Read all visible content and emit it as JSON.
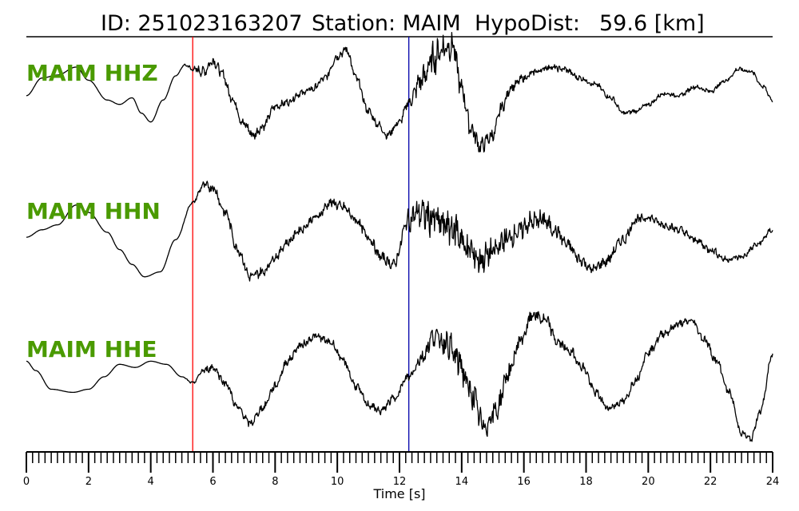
{
  "title": {
    "id_label": "ID: 251023163207",
    "station_label": "Station: MAIM",
    "dist_label": "HypoDist:",
    "dist_value": "59.6 [km]"
  },
  "chart_data": {
    "type": "line",
    "xlabel": "Time [s]",
    "xlim": [
      0,
      24
    ],
    "xticks": [
      "0",
      "2",
      "4",
      "6",
      "8",
      "10",
      "12",
      "14",
      "16",
      "18",
      "20",
      "22",
      "24"
    ],
    "minor_tick_step": 0.2,
    "markers": [
      {
        "time": 5.35,
        "color": "#ff0000"
      },
      {
        "time": 12.3,
        "color": "#0000aa"
      }
    ],
    "label_color": "#4a9a00",
    "trace_color": "#000000",
    "series": [
      {
        "name": "MAIM HHZ",
        "x": [
          0,
          0.5,
          1,
          1.6,
          2,
          2.6,
          3,
          3.4,
          3.7,
          4,
          4.4,
          4.8,
          5.1,
          5.35,
          5.7,
          6,
          6.3,
          6.6,
          7,
          7.3,
          7.6,
          8,
          8.4,
          8.8,
          9.2,
          9.6,
          10,
          10.3,
          10.6,
          11,
          11.3,
          11.6,
          12,
          12.3,
          12.7,
          13.1,
          13.4,
          13.7,
          14,
          14.3,
          14.6,
          15,
          15.3,
          15.6,
          16,
          16.4,
          16.8,
          17.3,
          17.8,
          18.3,
          18.8,
          19.2,
          19.6,
          20,
          20.5,
          21,
          21.5,
          22,
          22.5,
          22.9,
          23.3,
          23.7,
          24
        ],
        "y": [
          0.15,
          0.55,
          0.62,
          0.8,
          0.5,
          0.05,
          -0.05,
          0.1,
          -0.25,
          -0.45,
          0.05,
          0.6,
          0.85,
          0.75,
          0.7,
          0.95,
          0.65,
          0.1,
          -0.5,
          -0.75,
          -0.55,
          -0.1,
          0.0,
          0.2,
          0.3,
          0.55,
          1.05,
          1.2,
          0.55,
          -0.2,
          -0.5,
          -0.75,
          -0.45,
          0.0,
          0.5,
          1.0,
          1.25,
          1.3,
          0.3,
          -0.6,
          -1.0,
          -0.75,
          -0.1,
          0.35,
          0.55,
          0.7,
          0.8,
          0.75,
          0.55,
          0.4,
          0.1,
          -0.25,
          -0.2,
          -0.05,
          0.2,
          0.15,
          0.35,
          0.25,
          0.5,
          0.75,
          0.7,
          0.35,
          0.05
        ],
        "noise": [
          0,
          0,
          0,
          0,
          0,
          0,
          0,
          0,
          0,
          0,
          0,
          0,
          0.02,
          0.08,
          0.12,
          0.12,
          0.1,
          0.1,
          0.12,
          0.12,
          0.1,
          0.08,
          0.08,
          0.08,
          0.08,
          0.08,
          0.1,
          0.1,
          0.1,
          0.08,
          0.08,
          0.08,
          0.08,
          0.12,
          0.3,
          0.35,
          0.35,
          0.3,
          0.25,
          0.2,
          0.18,
          0.15,
          0.12,
          0.1,
          0.08,
          0.08,
          0.07,
          0.07,
          0.06,
          0.06,
          0.06,
          0.05,
          0.05,
          0.05,
          0.05,
          0.05,
          0.05,
          0.05,
          0.05,
          0.05,
          0.05,
          0.05,
          0.05
        ]
      },
      {
        "name": "MAIM HHN",
        "x": [
          0,
          0.5,
          1,
          1.6,
          2,
          2.6,
          3,
          3.4,
          3.8,
          4.3,
          4.8,
          5.35,
          5.7,
          6,
          6.4,
          6.8,
          7.2,
          7.6,
          8,
          8.4,
          8.8,
          9.3,
          9.8,
          10.2,
          10.6,
          11,
          11.4,
          11.8,
          12.3,
          12.6,
          13,
          13.4,
          13.8,
          14.2,
          14.6,
          15,
          15.4,
          15.8,
          16.2,
          16.6,
          17,
          17.4,
          17.8,
          18.2,
          18.6,
          19.2,
          19.6,
          20,
          20.5,
          21,
          21.5,
          22,
          22.5,
          23,
          23.5,
          24
        ],
        "y": [
          -0.05,
          0.1,
          0.2,
          0.6,
          0.45,
          0.05,
          -0.3,
          -0.6,
          -0.85,
          -0.75,
          -0.1,
          0.65,
          1.0,
          0.95,
          0.45,
          -0.3,
          -0.85,
          -0.75,
          -0.45,
          -0.15,
          0.1,
          0.35,
          0.65,
          0.55,
          0.3,
          -0.05,
          -0.45,
          -0.6,
          0.3,
          0.45,
          0.35,
          0.2,
          0.1,
          -0.3,
          -0.5,
          -0.35,
          -0.1,
          0.05,
          0.25,
          0.3,
          0.1,
          -0.2,
          -0.5,
          -0.7,
          -0.55,
          -0.1,
          0.3,
          0.35,
          0.2,
          0.1,
          -0.1,
          -0.3,
          -0.5,
          -0.45,
          -0.2,
          0.1
        ],
        "noise": [
          0,
          0,
          0,
          0,
          0,
          0,
          0,
          0,
          0,
          0,
          0,
          0.02,
          0.08,
          0.1,
          0.1,
          0.1,
          0.1,
          0.1,
          0.08,
          0.08,
          0.08,
          0.08,
          0.1,
          0.1,
          0.1,
          0.1,
          0.1,
          0.1,
          0.2,
          0.3,
          0.35,
          0.35,
          0.4,
          0.35,
          0.3,
          0.25,
          0.25,
          0.2,
          0.2,
          0.2,
          0.15,
          0.12,
          0.12,
          0.1,
          0.1,
          0.1,
          0.1,
          0.08,
          0.08,
          0.08,
          0.08,
          0.08,
          0.06,
          0.06,
          0.06,
          0.06
        ]
      },
      {
        "name": "MAIM HHE",
        "x": [
          0,
          0.3,
          0.8,
          1.5,
          2,
          2.5,
          3,
          3.5,
          4,
          4.5,
          5,
          5.35,
          5.7,
          6,
          6.4,
          6.8,
          7.2,
          7.6,
          8,
          8.4,
          8.8,
          9.3,
          9.8,
          10.2,
          10.6,
          11,
          11.4,
          11.8,
          12.3,
          12.7,
          13.1,
          13.5,
          13.9,
          14.3,
          14.7,
          15.1,
          15.5,
          15.9,
          16.3,
          16.7,
          17.1,
          17.5,
          17.9,
          18.3,
          18.7,
          19.2,
          19.6,
          20,
          20.5,
          21,
          21.4,
          21.8,
          22.2,
          22.6,
          23,
          23.3,
          23.6,
          24
        ],
        "y": [
          0.2,
          0.05,
          -0.25,
          -0.3,
          -0.25,
          -0.05,
          0.15,
          0.1,
          0.2,
          0.15,
          -0.05,
          -0.15,
          0.05,
          0.1,
          -0.15,
          -0.55,
          -0.8,
          -0.55,
          -0.2,
          0.2,
          0.45,
          0.6,
          0.5,
          0.2,
          -0.2,
          -0.5,
          -0.6,
          -0.4,
          -0.05,
          0.25,
          0.6,
          0.5,
          0.2,
          -0.3,
          -0.85,
          -0.6,
          0.0,
          0.55,
          0.95,
          0.85,
          0.5,
          0.35,
          0.1,
          -0.3,
          -0.55,
          -0.45,
          -0.1,
          0.35,
          0.65,
          0.8,
          0.85,
          0.55,
          0.2,
          -0.3,
          -0.95,
          -1.05,
          -0.6,
          0.3
        ],
        "noise": [
          0,
          0,
          0,
          0,
          0,
          0,
          0,
          0,
          0,
          0,
          0,
          0.02,
          0.05,
          0.06,
          0.06,
          0.06,
          0.06,
          0.06,
          0.06,
          0.06,
          0.06,
          0.06,
          0.06,
          0.06,
          0.06,
          0.06,
          0.06,
          0.06,
          0.08,
          0.12,
          0.15,
          0.2,
          0.25,
          0.25,
          0.22,
          0.18,
          0.15,
          0.12,
          0.1,
          0.1,
          0.08,
          0.08,
          0.08,
          0.06,
          0.06,
          0.06,
          0.06,
          0.06,
          0.06,
          0.06,
          0.06,
          0.06,
          0.06,
          0.05,
          0.05,
          0.05,
          0.05,
          0.05
        ]
      }
    ]
  }
}
